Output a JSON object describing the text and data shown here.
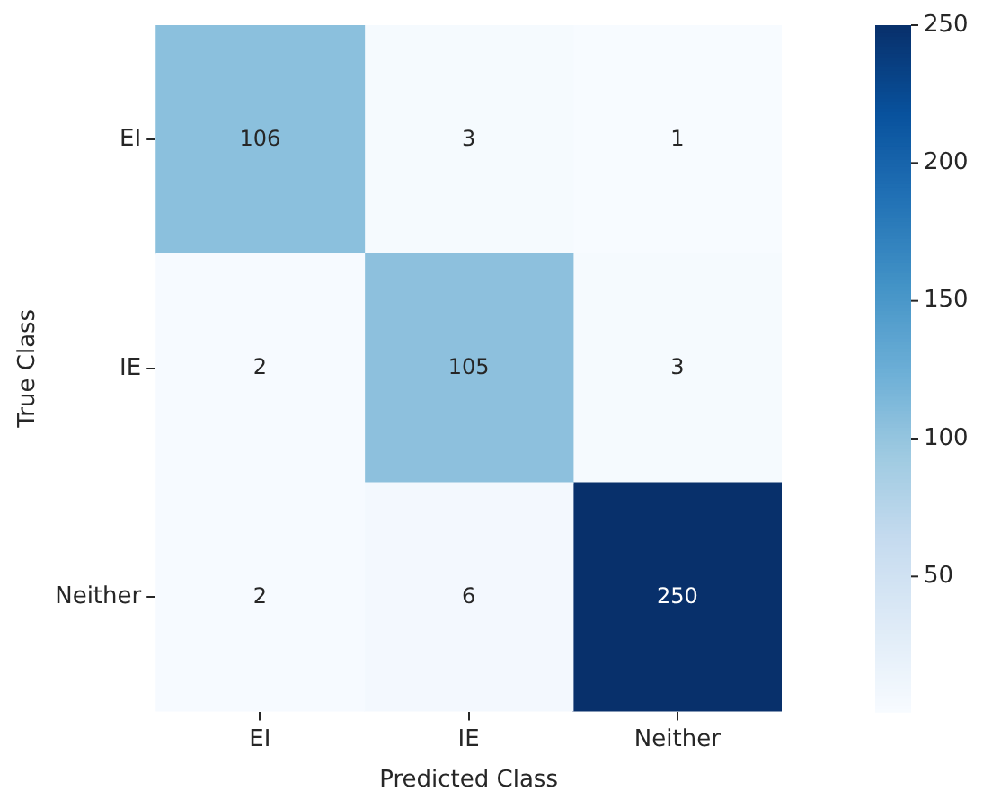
{
  "chart_data": {
    "type": "heatmap",
    "xlabel": "Predicted Class",
    "ylabel": "True Class",
    "categories": [
      "EI",
      "IE",
      "Neither"
    ],
    "y_categories": [
      "EI",
      "IE",
      "Neither"
    ],
    "cells": [
      [
        106,
        3,
        1
      ],
      [
        2,
        105,
        3
      ],
      [
        2,
        6,
        250
      ]
    ],
    "clim": [
      1,
      250
    ],
    "cticks": [
      50,
      100,
      150,
      200,
      250
    ],
    "data_labels": true
  }
}
